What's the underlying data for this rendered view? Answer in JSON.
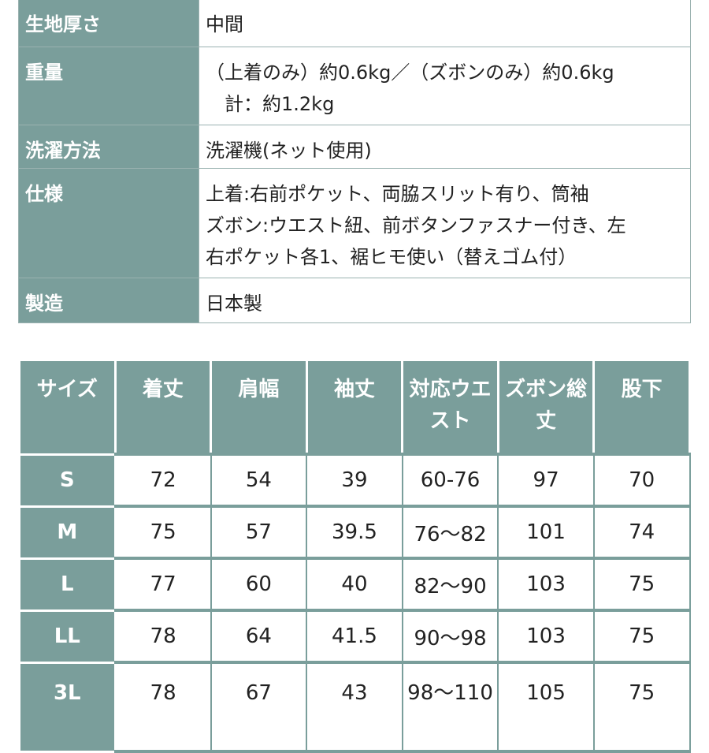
{
  "spec": {
    "rows": [
      {
        "label": "生地厚さ",
        "lines": [
          "中間"
        ]
      },
      {
        "label": "重量",
        "lines": [
          "（上着のみ）約0.6kg／（ズボンのみ）約0.6kg",
          "　計：約1.2kg"
        ]
      },
      {
        "label": "洗濯方法",
        "lines": [
          "洗濯機(ネット使用)"
        ]
      },
      {
        "label": "仕様",
        "lines": [
          "上着:右前ポケット、両脇スリット有り、筒袖",
          "ズボン:ウエスト紐、前ボタンファスナー付き、左",
          "右ポケット各1、裾ヒモ使い（替えゴム付）"
        ]
      },
      {
        "label": "製造",
        "lines": [
          "日本製"
        ]
      }
    ]
  },
  "size_table": {
    "headers": [
      "サイズ",
      "着丈",
      "肩幅",
      "袖丈",
      "対応ウエスト",
      "ズボン総丈",
      "股下"
    ],
    "rows": [
      {
        "size": "S",
        "values": [
          "72",
          "54",
          "39",
          "60-76",
          "97",
          "70"
        ]
      },
      {
        "size": "M",
        "values": [
          "75",
          "57",
          "39.5",
          "76〜82",
          "101",
          "74"
        ]
      },
      {
        "size": "L",
        "values": [
          "77",
          "60",
          "40",
          "82〜90",
          "103",
          "75"
        ]
      },
      {
        "size": "LL",
        "values": [
          "78",
          "64",
          "41.5",
          "90〜98",
          "103",
          "75"
        ]
      },
      {
        "size": "3L",
        "values": [
          "78",
          "67",
          "43",
          "98〜110",
          "105",
          "75"
        ]
      }
    ]
  },
  "colors": {
    "header_bg": "#7a9e9b",
    "header_text": "#ffffff",
    "cell_bg": "#ffffff",
    "text": "#222222"
  }
}
